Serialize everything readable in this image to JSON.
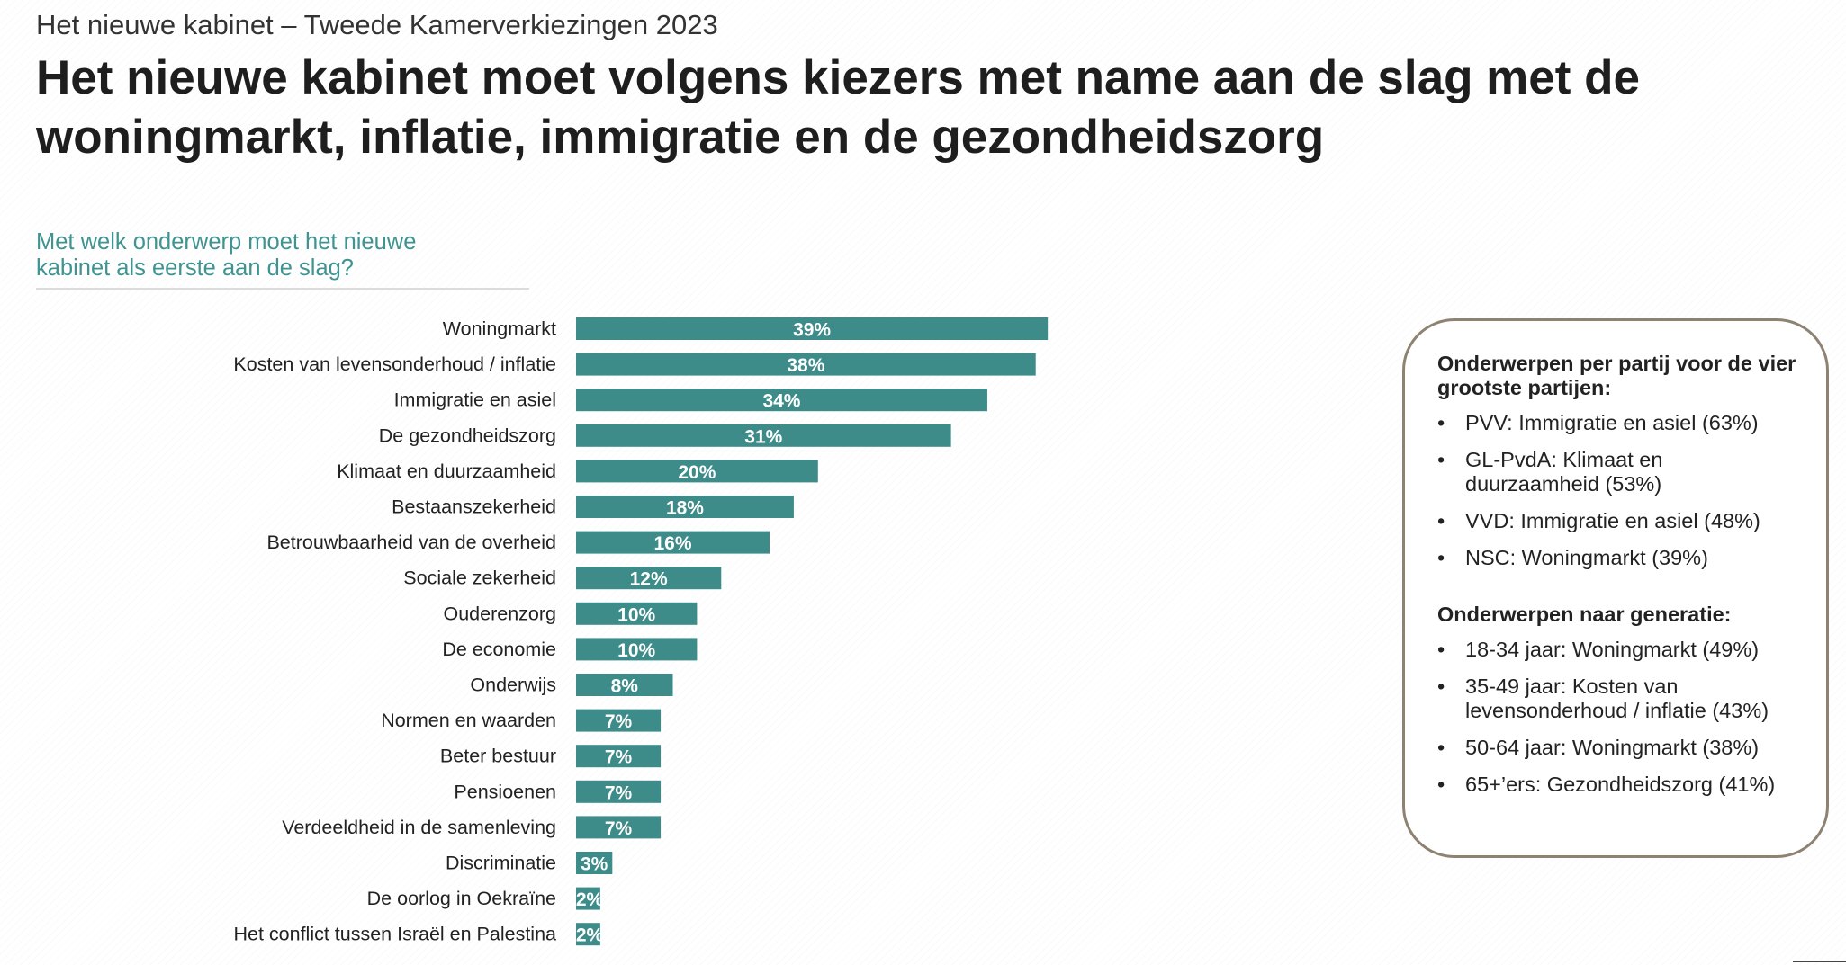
{
  "header": {
    "supertitle": "Het nieuwe kabinet – Tweede Kamerverkiezingen 2023",
    "headline": "Het nieuwe kabinet moet volgens kiezers met name aan de slag met de woningmarkt, inflatie, immigratie en de gezondheidszorg"
  },
  "question": {
    "line1": "Met welk onderwerp moet het nieuwe",
    "line2": "kabinet als eerste aan de slag?"
  },
  "colors": {
    "bar": "#3d8c8a",
    "question_text": "#3f9390",
    "box_border": "#8e8373"
  },
  "chart_data": {
    "type": "bar",
    "orientation": "horizontal",
    "title": "Met welk onderwerp moet het nieuwe kabinet als eerste aan de slag?",
    "xlabel": "",
    "ylabel": "",
    "unit": "%",
    "xlim": [
      0,
      39
    ],
    "grid": false,
    "legend": "none",
    "categories": [
      "Woningmarkt",
      "Kosten van levensonderhoud / inflatie",
      "Immigratie en asiel",
      "De gezondheidszorg",
      "Klimaat en duurzaamheid",
      "Bestaanszekerheid",
      "Betrouwbaarheid van de overheid",
      "Sociale zekerheid",
      "Ouderenzorg",
      "De economie",
      "Onderwijs",
      "Normen en waarden",
      "Beter bestuur",
      "Pensioenen",
      "Verdeeldheid in de samenleving",
      "Discriminatie",
      "De oorlog in Oekraïne",
      "Het conflict tussen Israël en Palestina"
    ],
    "values": [
      39,
      38,
      34,
      31,
      20,
      18,
      16,
      12,
      10,
      10,
      8,
      7,
      7,
      7,
      7,
      3,
      2,
      2
    ],
    "labels": [
      "39%",
      "38%",
      "34%",
      "31%",
      "20%",
      "18%",
      "16%",
      "12%",
      "10%",
      "10%",
      "8%",
      "7%",
      "7%",
      "7%",
      "7%",
      "3%",
      "2%",
      "2%"
    ]
  },
  "infobox": {
    "party_heading": "Onderwerpen per partij voor de vier grootste partijen:",
    "party_items": [
      "PVV: Immigratie en asiel (63%)",
      "GL-PvdA: Klimaat en duurzaamheid (53%)",
      "VVD: Immigratie en asiel (48%)",
      "NSC: Woningmarkt (39%)"
    ],
    "generation_heading": "Onderwerpen naar generatie:",
    "generation_items": [
      "18-34 jaar: Woningmarkt (49%)",
      "35-49 jaar: Kosten van levensonderhoud / inflatie (43%)",
      "50-64 jaar: Woningmarkt (38%)",
      "65+’ers: Gezondheidszorg (41%)"
    ],
    "bullet": "•"
  }
}
